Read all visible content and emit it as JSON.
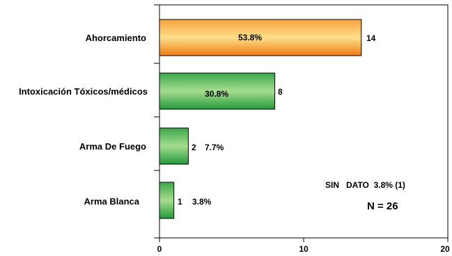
{
  "chart_data": {
    "type": "bar",
    "orientation": "horizontal",
    "categories": [
      "Ahorcamiento",
      "Intoxicación Tóxicos/médicos",
      "Arma De Fuego",
      "Arma Blanca"
    ],
    "values": [
      14,
      8,
      2,
      1
    ],
    "value_labels": [
      "14",
      "8",
      "2",
      "1"
    ],
    "percent_labels": [
      "53.8%",
      "30.8%",
      "7.7%",
      "3.8%"
    ],
    "bar_colors": [
      "#f08a1e",
      "#3aa84a",
      "#3aa84a",
      "#3aa84a"
    ],
    "xlim": [
      0,
      20
    ],
    "xticks": [
      "0",
      "10",
      "20"
    ],
    "xlabel": "",
    "ylabel": "",
    "title": "",
    "grid": false,
    "annotations": {
      "sin_dato": "SIN   DATO  3.8% (1)",
      "n_total": "N = 26"
    }
  }
}
